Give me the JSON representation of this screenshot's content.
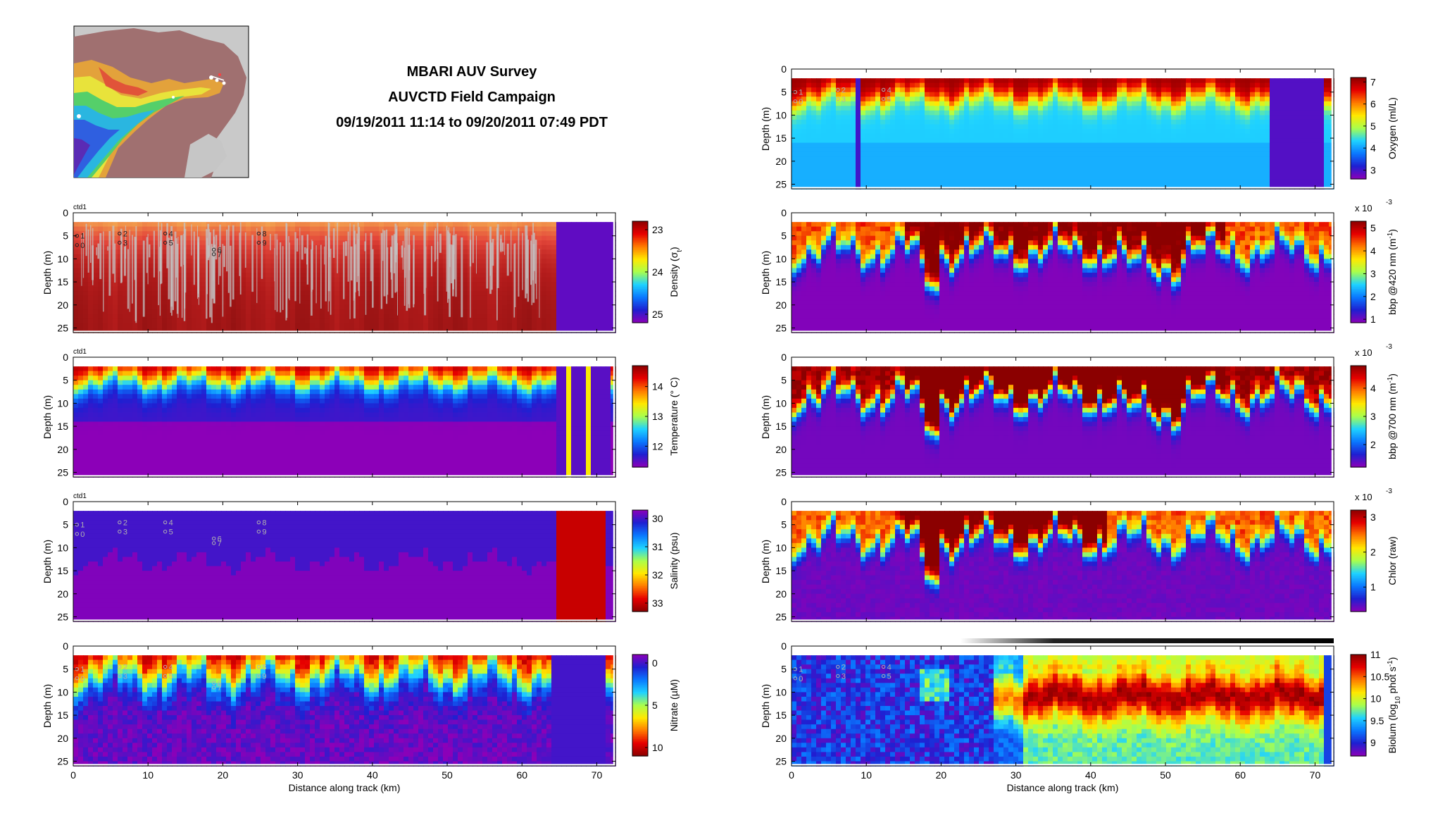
{
  "title": {
    "line1": "MBARI AUV Survey",
    "line2": "AUVCTD Field Campaign",
    "line3": "09/19/2011 11:14 to 09/20/2011 07:49 PDT"
  },
  "colors": {
    "jet": [
      "#8c00b8",
      "#1f1fd1",
      "#0a78ff",
      "#1fd2ff",
      "#a9ff4c",
      "#ffe800",
      "#ff7a00",
      "#e60000",
      "#8b0000"
    ],
    "density_fill": [
      "#f5c25a",
      "#f08a48",
      "#e3463a",
      "#b31b1b",
      "#7a0a0a"
    ],
    "station_marker": "#f0c000",
    "grey_points": "#c4c4c4"
  },
  "shared": {
    "x_label": "Distance along track (km)",
    "y_label": "Depth (m)",
    "x_ticks": [
      0,
      10,
      20,
      30,
      40,
      50,
      60,
      70
    ],
    "y_ticks": [
      0,
      5,
      10,
      15,
      20,
      25
    ],
    "x_range": [
      0,
      72.5
    ],
    "y_range": [
      0,
      26
    ]
  },
  "ctd_label": "ctd1",
  "stations": [
    {
      "label": "1",
      "km": 0.5,
      "depth": 5
    },
    {
      "label": "0",
      "km": 0.5,
      "depth": 7
    },
    {
      "label": "2",
      "km": 6.2,
      "depth": 4.5
    },
    {
      "label": "3",
      "km": 6.2,
      "depth": 6.5
    },
    {
      "label": "4",
      "km": 12.3,
      "depth": 4.5
    },
    {
      "label": "5",
      "km": 12.3,
      "depth": 6.5
    },
    {
      "label": "6",
      "km": 18.8,
      "depth": 8
    },
    {
      "label": "7",
      "km": 18.8,
      "depth": 9
    },
    {
      "label": "8",
      "km": 24.8,
      "depth": 4.5
    },
    {
      "label": "9",
      "km": 24.8,
      "depth": 6.5
    }
  ],
  "chart_data": [
    {
      "id": "density",
      "type": "heatmap",
      "variable": "Density (σ_t)",
      "colorbar_label": "Density (σ",
      "colorbar_sub": "t",
      "colorbar_tail": ")",
      "clim": [
        22.8,
        25.2
      ],
      "cticks": [
        "23",
        "24",
        "25"
      ],
      "reversed": true
    },
    {
      "id": "temperature",
      "type": "heatmap",
      "variable": "Temperature (°C)",
      "colorbar_label": "Temperature (° C)",
      "clim": [
        11.3,
        14.7
      ],
      "cticks": [
        "12",
        "13",
        "14"
      ]
    },
    {
      "id": "salinity",
      "type": "heatmap",
      "variable": "Salinity (psu)",
      "colorbar_label": "Salinity (psu)",
      "clim": [
        29.7,
        33.3
      ],
      "cticks": [
        "30",
        "31",
        "32",
        "33"
      ],
      "reversed": true
    },
    {
      "id": "nitrate",
      "type": "heatmap",
      "variable": "Nitrate (µM)",
      "colorbar_label": "Nitrate (µM)",
      "clim": [
        -1,
        11
      ],
      "cticks": [
        "0",
        "5",
        "10"
      ],
      "reversed": true
    },
    {
      "id": "oxygen",
      "type": "heatmap",
      "variable": "Oxygen (ml/L)",
      "colorbar_label": "Oxygen (ml/L)",
      "clim": [
        2.6,
        7.2
      ],
      "cticks": [
        "3",
        "4",
        "5",
        "6",
        "7"
      ]
    },
    {
      "id": "bbp420",
      "type": "heatmap",
      "variable": "bbp @420 nm (m⁻¹)",
      "colorbar_label": "bbp @420 nm (m",
      "colorbar_sup": "-1",
      "colorbar_tail": ")",
      "scale_note": "x 10",
      "scale_exp": "-3",
      "clim": [
        0.85,
        5.3
      ],
      "cticks": [
        "1",
        "2",
        "3",
        "4",
        "5"
      ]
    },
    {
      "id": "bbp700",
      "type": "heatmap",
      "variable": "bbp @700 nm (m⁻¹)",
      "colorbar_label": "bbp @700 nm (m",
      "colorbar_sup": "-1",
      "colorbar_tail": ")",
      "scale_note": "x 10",
      "scale_exp": "-3",
      "clim": [
        1.2,
        4.8
      ],
      "cticks": [
        "2",
        "3",
        "4"
      ]
    },
    {
      "id": "chlor",
      "type": "heatmap",
      "variable": "Chlor (raw)",
      "colorbar_label": "Chlor (raw)",
      "scale_note": "x 10",
      "scale_exp": "-3",
      "clim": [
        0.3,
        3.2
      ],
      "cticks": [
        "1",
        "2",
        "3"
      ]
    },
    {
      "id": "biolum",
      "type": "heatmap",
      "variable": "Biolum (log10 phot s⁻¹)",
      "colorbar_label": "Biolum (log",
      "colorbar_sub": "10",
      "colorbar_tail2": " phot s",
      "colorbar_sup": "-1",
      "colorbar_tail": ")",
      "clim": [
        8.7,
        11.0
      ],
      "cticks": [
        "9",
        "9.5",
        "10",
        "10.5",
        "11"
      ]
    }
  ]
}
